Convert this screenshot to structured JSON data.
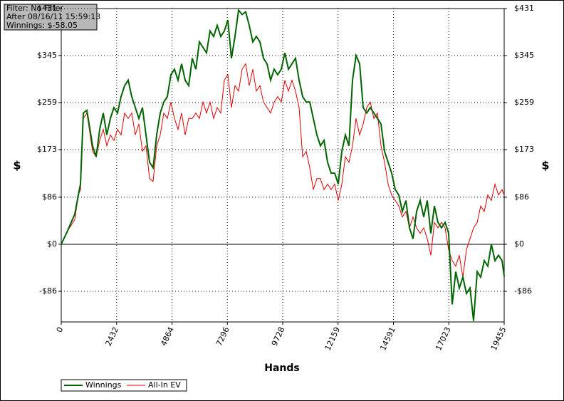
{
  "chart_data": {
    "type": "line",
    "info": [
      "Filter: No Filter",
      "After 08/16/11 15:59:13",
      "Winnings: $-58.05"
    ],
    "xlabel": "Hands",
    "ylabel": "$",
    "y2label": "$",
    "x": [
      0,
      282,
      438,
      594,
      751,
      845,
      970,
      1126,
      1376,
      1533,
      1689,
      1846,
      2002,
      2158,
      2315,
      2471,
      2627,
      2784,
      2940,
      3097,
      3253,
      3410,
      3566,
      3722,
      3879,
      4035,
      4192,
      4348,
      4504,
      4661,
      4817,
      4974,
      5130,
      5286,
      5443,
      5599,
      5756,
      5912,
      6068,
      6225,
      6381,
      6538,
      6694,
      6850,
      7007,
      7163,
      7320,
      7476,
      7632,
      7789,
      7945,
      8102,
      8258,
      8414,
      8571,
      8727,
      8884,
      9040,
      9196,
      9353,
      9509,
      9666,
      9822,
      9978,
      10135,
      10291,
      10448,
      10604,
      10760,
      10917,
      11073,
      11230,
      11386,
      11542,
      11699,
      11855,
      12012,
      12168,
      12324,
      12481,
      12637,
      12794,
      12950,
      13106,
      13263,
      13419,
      13576,
      13732,
      13888,
      14045,
      14201,
      14358,
      14514,
      14670,
      14827,
      14983,
      15140,
      15296,
      15452,
      15609,
      15765,
      15922,
      16078,
      16234,
      16391,
      16547,
      16704,
      16860,
      17016,
      17173,
      17329,
      17486,
      17642,
      17798,
      17955,
      18111,
      18268,
      18424,
      18580,
      18737,
      18893,
      19050,
      19206,
      19362,
      19455
    ],
    "series": [
      {
        "name": "Winnings",
        "color": "#006400",
        "values": [
          0,
          25,
          40,
          55,
          90,
          110,
          240,
          245,
          180,
          160,
          210,
          240,
          200,
          230,
          250,
          240,
          270,
          290,
          300,
          270,
          250,
          230,
          250,
          200,
          150,
          140,
          200,
          240,
          260,
          270,
          310,
          320,
          300,
          330,
          300,
          290,
          340,
          320,
          370,
          360,
          350,
          390,
          380,
          400,
          380,
          390,
          410,
          340,
          380,
          428,
          420,
          425,
          400,
          370,
          380,
          370,
          340,
          330,
          300,
          320,
          310,
          320,
          350,
          320,
          330,
          340,
          300,
          270,
          260,
          260,
          230,
          200,
          180,
          190,
          150,
          130,
          130,
          110,
          170,
          200,
          180,
          300,
          345,
          330,
          250,
          240,
          250,
          240,
          230,
          220,
          170,
          150,
          130,
          100,
          90,
          60,
          80,
          30,
          10,
          60,
          80,
          50,
          80,
          20,
          70,
          40,
          30,
          40,
          20,
          -110,
          -50,
          -80,
          -60,
          -90,
          -80,
          -140,
          -50,
          -60,
          -30,
          -40,
          0,
          -30,
          -20,
          -30,
          -58
        ]
      },
      {
        "name": "All-In EV",
        "color": "#e00000",
        "values": [
          0,
          25,
          35,
          45,
          90,
          100,
          230,
          240,
          170,
          160,
          190,
          210,
          180,
          200,
          190,
          210,
          200,
          240,
          230,
          240,
          200,
          220,
          170,
          180,
          120,
          115,
          180,
          200,
          240,
          230,
          260,
          230,
          210,
          240,
          200,
          230,
          230,
          240,
          230,
          260,
          240,
          260,
          230,
          250,
          240,
          300,
          310,
          250,
          290,
          280,
          320,
          330,
          290,
          320,
          280,
          290,
          260,
          250,
          240,
          260,
          270,
          260,
          300,
          280,
          300,
          280,
          250,
          160,
          170,
          140,
          100,
          120,
          120,
          100,
          110,
          100,
          110,
          80,
          110,
          160,
          150,
          180,
          230,
          200,
          220,
          250,
          260,
          230,
          240,
          180,
          150,
          110,
          90,
          80,
          70,
          50,
          60,
          30,
          50,
          30,
          20,
          30,
          10,
          -20,
          40,
          30,
          40,
          30,
          -10,
          -30,
          -40,
          -20,
          -60,
          -10,
          10,
          30,
          40,
          70,
          60,
          90,
          80,
          110,
          90,
          100,
          90
        ]
      }
    ],
    "xlim": [
      0,
      19455
    ],
    "xticks": [
      0,
      2432,
      4864,
      7296,
      9728,
      12159,
      14591,
      17023,
      19455
    ],
    "ylim": [
      -142,
      431
    ],
    "yticks": [
      {
        "value": 431,
        "label": "$431"
      },
      {
        "value": 345,
        "label": "$345"
      },
      {
        "value": 259,
        "label": "$259"
      },
      {
        "value": 173,
        "label": "$173"
      },
      {
        "value": 86,
        "label": "$86"
      },
      {
        "value": 0,
        "label": "$0"
      },
      {
        "value": -86,
        "label": "-$86"
      }
    ],
    "y2lim": [
      -142,
      431
    ],
    "y2ticks": [
      {
        "value": 431,
        "label": "$431"
      },
      {
        "value": 345,
        "label": "$345"
      },
      {
        "value": 259,
        "label": "$259"
      },
      {
        "value": 173,
        "label": "$173"
      },
      {
        "value": 86,
        "label": "$86"
      },
      {
        "value": 0,
        "label": "$0"
      },
      {
        "value": -86,
        "label": "-$86"
      }
    ],
    "grid": true,
    "legend": "bottom-left"
  }
}
